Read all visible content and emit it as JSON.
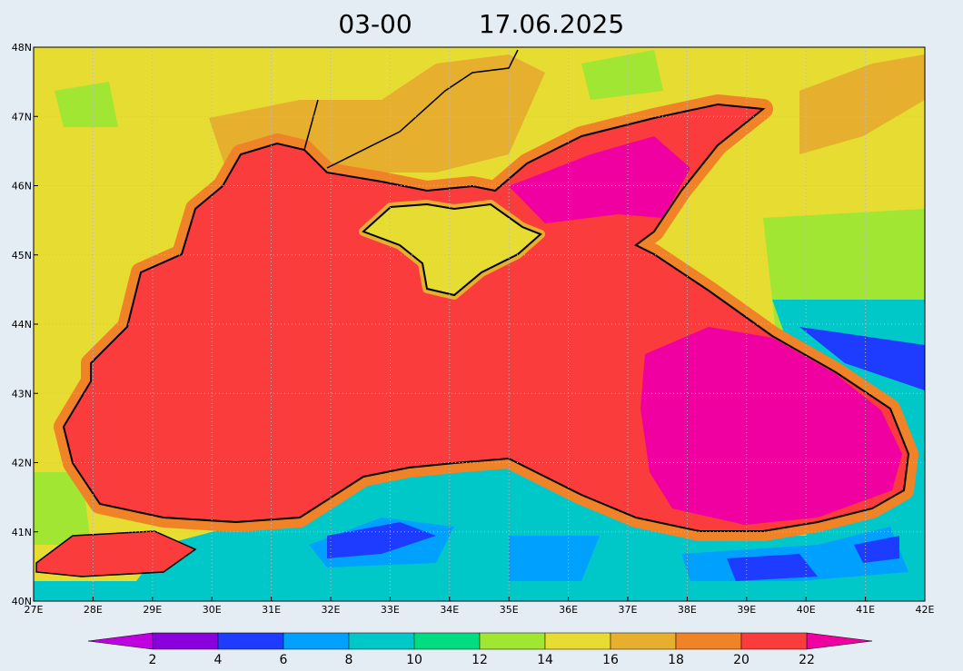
{
  "map": {
    "title_time": "03-00",
    "title_date": "17.06.2025",
    "lon": {
      "lim": [
        27,
        42
      ],
      "ticks": [
        {
          "value": 27,
          "label": "27E"
        },
        {
          "value": 28,
          "label": "28E"
        },
        {
          "value": 29,
          "label": "29E"
        },
        {
          "value": 30,
          "label": "30E"
        },
        {
          "value": 31,
          "label": "31E"
        },
        {
          "value": 32,
          "label": "32E"
        },
        {
          "value": 33,
          "label": "33E"
        },
        {
          "value": 34,
          "label": "34E"
        },
        {
          "value": 35,
          "label": "35E"
        },
        {
          "value": 36,
          "label": "36E"
        },
        {
          "value": 37,
          "label": "37E"
        },
        {
          "value": 38,
          "label": "38E"
        },
        {
          "value": 39,
          "label": "39E"
        },
        {
          "value": 40,
          "label": "40E"
        },
        {
          "value": 41,
          "label": "41E"
        },
        {
          "value": 42,
          "label": "42E"
        }
      ]
    },
    "lat": {
      "lim": [
        40,
        48
      ],
      "ticks": [
        {
          "value": 40,
          "label": "40N"
        },
        {
          "value": 41,
          "label": "41N"
        },
        {
          "value": 42,
          "label": "42N"
        },
        {
          "value": 43,
          "label": "43N"
        },
        {
          "value": 44,
          "label": "44N"
        },
        {
          "value": 45,
          "label": "45N"
        },
        {
          "value": 46,
          "label": "46N"
        },
        {
          "value": 47,
          "label": "47N"
        },
        {
          "value": 48,
          "label": "48N"
        }
      ]
    },
    "colorbar": {
      "levels": [
        2,
        4,
        6,
        8,
        10,
        12,
        14,
        16,
        18,
        20,
        22
      ],
      "under_color": "#c000e0",
      "colors": [
        "#8a00dc",
        "#1e3cff",
        "#00a0ff",
        "#00c8c8",
        "#00dc82",
        "#a0e632",
        "#e6dc32",
        "#e6af2d",
        "#f08228",
        "#fa3c3c"
      ],
      "over_color": "#f000a0"
    }
  }
}
